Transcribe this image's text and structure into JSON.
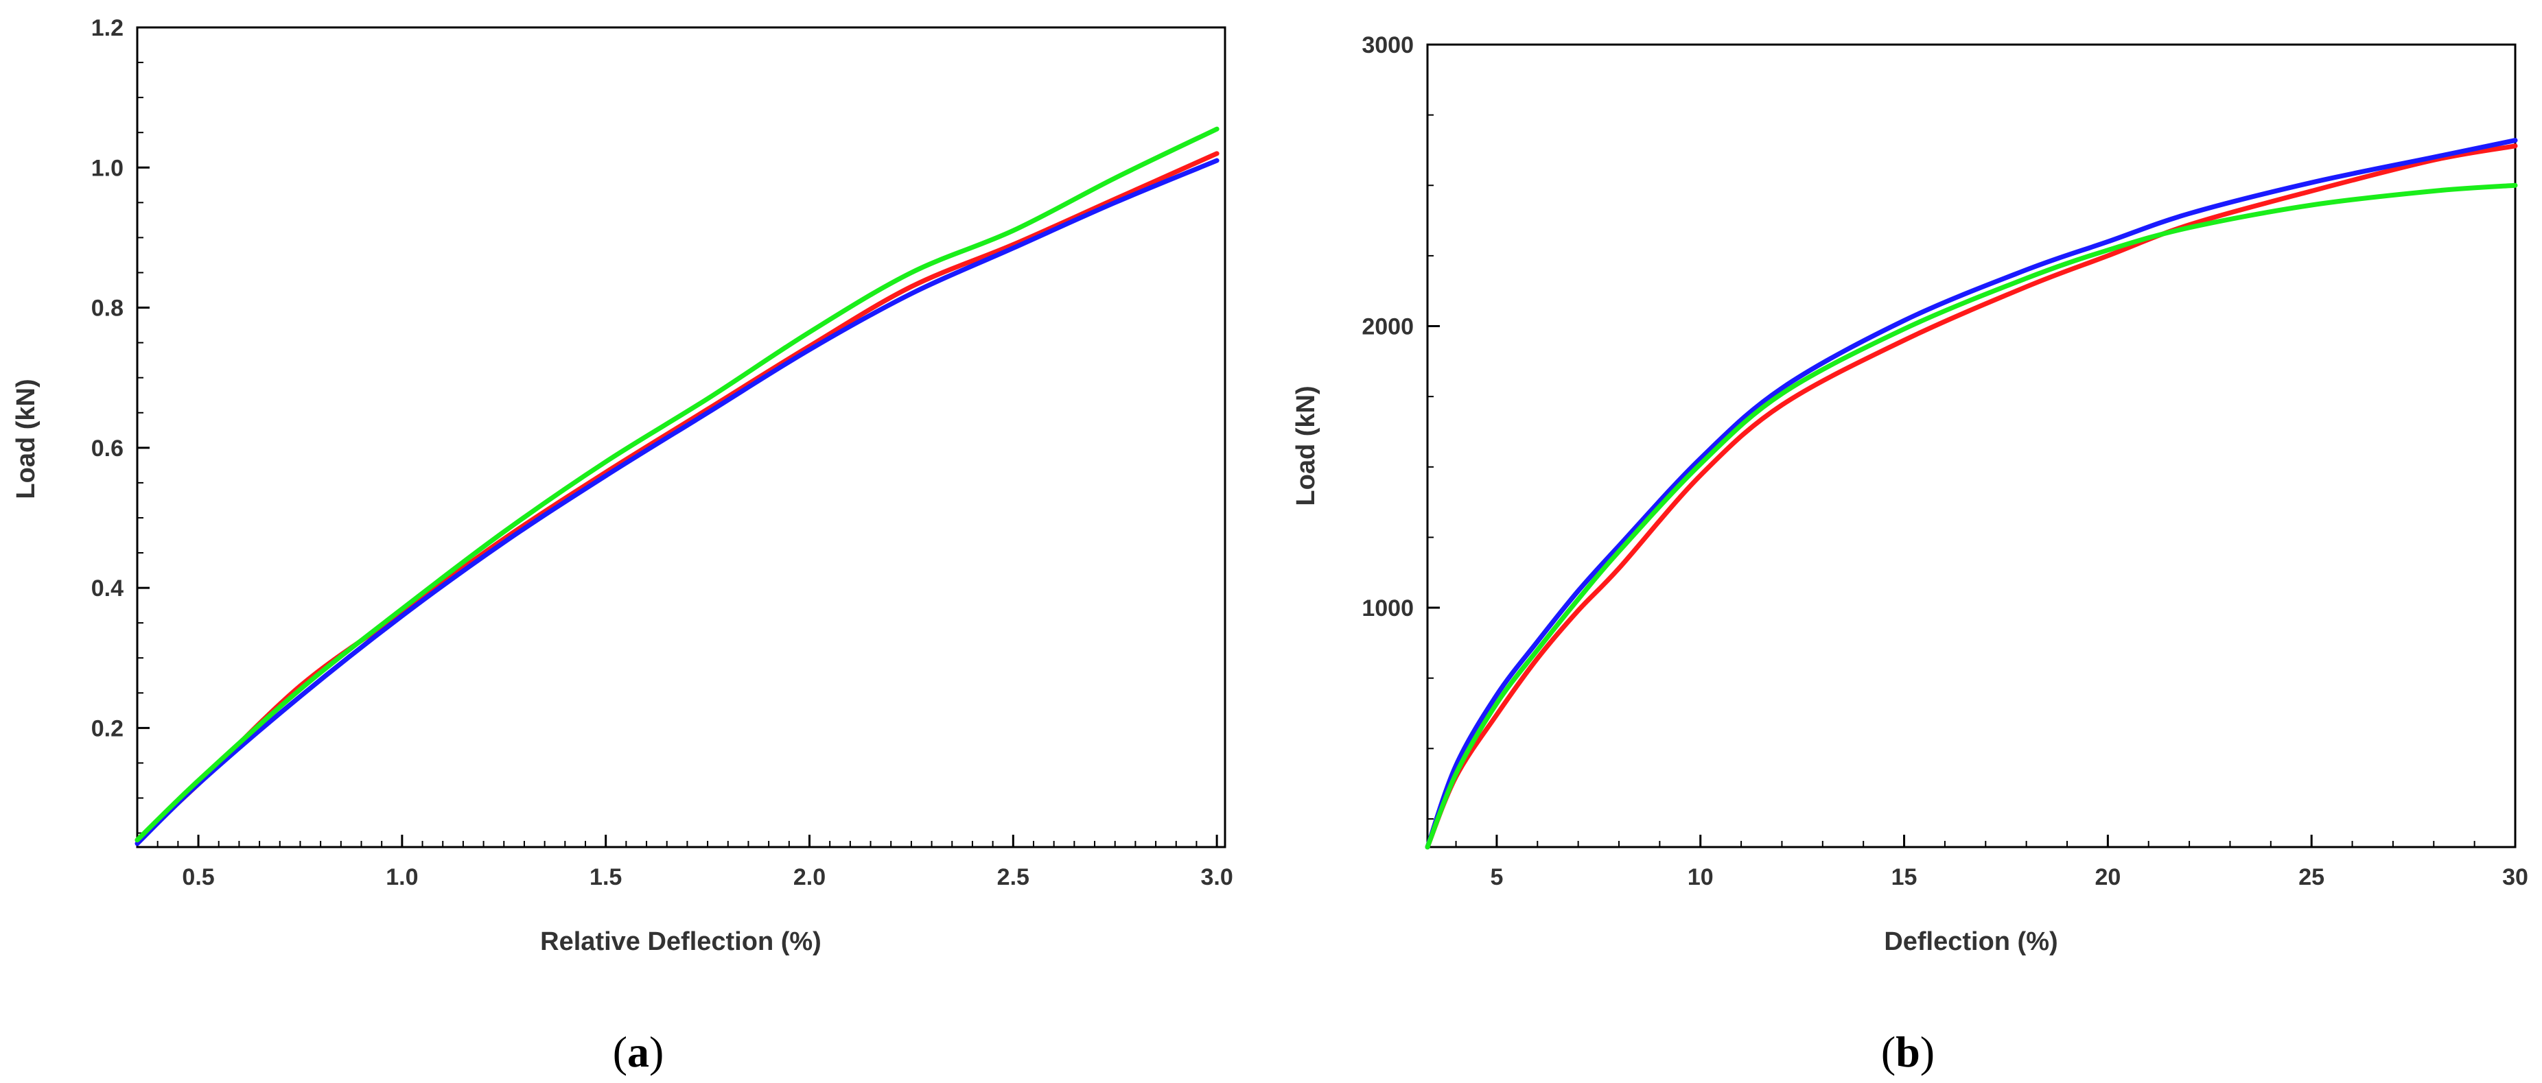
{
  "chart_data": [
    {
      "panel_label": "(a)",
      "caption_letter": "a",
      "type": "line",
      "xlabel": "Relative Deflection (%)",
      "ylabel": "Load (kN)",
      "xlim": [
        0.35,
        3.02
      ],
      "ylim": [
        0.03,
        1.2
      ],
      "xticks": [
        0.5,
        1.0,
        1.5,
        2.0,
        2.5,
        3.0
      ],
      "xtick_labels": [
        "0.5",
        "1.0",
        "1.5",
        "2.0",
        "2.5",
        "3.0"
      ],
      "yticks": [
        0.2,
        0.4,
        0.6,
        0.8,
        1.0,
        1.2
      ],
      "ytick_labels": [
        "0.2",
        "0.4",
        "0.6",
        "0.8",
        "1.0",
        "1.2"
      ],
      "grid": false,
      "series": [
        {
          "color": "#ff1a1a",
          "x": [
            0.35,
            0.5,
            0.75,
            1.0,
            1.25,
            1.5,
            1.75,
            2.0,
            2.25,
            2.5,
            2.75,
            3.0
          ],
          "y": [
            0.04,
            0.12,
            0.26,
            0.365,
            0.47,
            0.565,
            0.655,
            0.745,
            0.83,
            0.89,
            0.955,
            1.02
          ]
        },
        {
          "color": "#1a1aff",
          "x": [
            0.35,
            0.5,
            0.75,
            1.0,
            1.25,
            1.5,
            1.75,
            2.0,
            2.25,
            2.5,
            2.75,
            3.0
          ],
          "y": [
            0.035,
            0.12,
            0.245,
            0.36,
            0.465,
            0.56,
            0.65,
            0.74,
            0.82,
            0.885,
            0.95,
            1.01
          ]
        },
        {
          "color": "#1aee1a",
          "x": [
            0.35,
            0.5,
            0.75,
            1.0,
            1.25,
            1.5,
            1.75,
            2.0,
            2.25,
            2.5,
            2.75,
            3.0
          ],
          "y": [
            0.04,
            0.125,
            0.255,
            0.37,
            0.48,
            0.58,
            0.67,
            0.765,
            0.85,
            0.91,
            0.985,
            1.055
          ]
        }
      ]
    },
    {
      "panel_label": "(b)",
      "caption_letter": "b",
      "type": "line",
      "xlabel": "Deflection (%)",
      "ylabel": "Load (kN)",
      "xlim": [
        3.3,
        30
      ],
      "ylim": [
        150,
        3000
      ],
      "xticks": [
        5,
        10,
        15,
        20,
        25,
        30
      ],
      "xtick_labels": [
        "5",
        "10",
        "15",
        "20",
        "25",
        "30"
      ],
      "yticks": [
        1000,
        2000,
        3000
      ],
      "ytick_labels": [
        "1000",
        "2000",
        "3000"
      ],
      "grid": false,
      "series": [
        {
          "color": "#ff1a1a",
          "x": [
            3.3,
            4,
            5,
            6,
            7,
            8,
            10,
            12,
            15,
            18,
            20,
            22,
            25,
            28,
            30
          ],
          "y": [
            150,
            400,
            620,
            820,
            990,
            1140,
            1470,
            1720,
            1950,
            2140,
            2250,
            2360,
            2480,
            2590,
            2640
          ]
        },
        {
          "color": "#1a1aff",
          "x": [
            3.3,
            4,
            5,
            6,
            7,
            8,
            10,
            12,
            15,
            18,
            20,
            22,
            25,
            28,
            30
          ],
          "y": [
            150,
            440,
            690,
            880,
            1060,
            1220,
            1530,
            1780,
            2020,
            2200,
            2300,
            2400,
            2510,
            2600,
            2660
          ]
        },
        {
          "color": "#1aee1a",
          "x": [
            3.3,
            4,
            5,
            6,
            7,
            8,
            10,
            12,
            15,
            18,
            20,
            22,
            25,
            28,
            30
          ],
          "y": [
            150,
            410,
            660,
            850,
            1030,
            1200,
            1510,
            1760,
            1990,
            2170,
            2270,
            2350,
            2430,
            2480,
            2500
          ]
        }
      ]
    }
  ]
}
